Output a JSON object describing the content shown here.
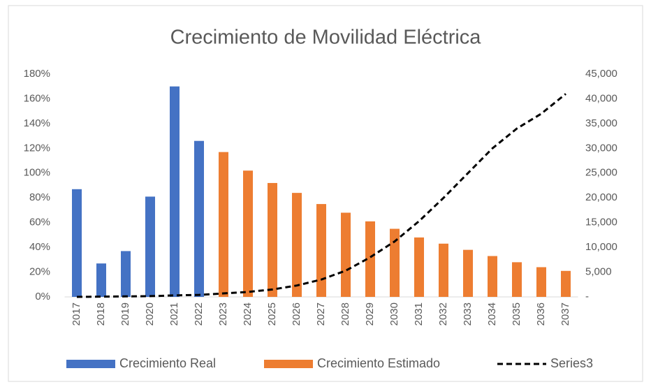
{
  "chart_data": {
    "type": "bar",
    "title": "Crecimiento de Movilidad Eléctrica",
    "categories": [
      "2017",
      "2018",
      "2019",
      "2020",
      "2021",
      "2022",
      "2023",
      "2024",
      "2025",
      "2026",
      "2027",
      "2028",
      "2029",
      "2030",
      "2031",
      "2032",
      "2033",
      "2034",
      "2035",
      "2036",
      "2037"
    ],
    "series": [
      {
        "name": "Crecimiento Real",
        "color": "#4472c4",
        "type": "bar",
        "values": [
          87,
          27,
          37,
          81,
          170,
          126,
          null,
          null,
          null,
          null,
          null,
          null,
          null,
          null,
          null,
          null,
          null,
          null,
          null,
          null,
          null
        ]
      },
      {
        "name": "Crecimiento  Estimado",
        "color": "#ed7d31",
        "type": "bar",
        "values": [
          null,
          null,
          null,
          null,
          null,
          null,
          117,
          102,
          92,
          84,
          75,
          68,
          61,
          55,
          48,
          43,
          38,
          33,
          28,
          24,
          21
        ]
      },
      {
        "name": "Series3",
        "color": "#000000",
        "type": "line",
        "axis": "y2",
        "values": [
          0,
          50,
          100,
          150,
          300,
          400,
          700,
          1000,
          1500,
          2300,
          3500,
          5300,
          8000,
          11200,
          15300,
          20000,
          25000,
          30000,
          34000,
          37000,
          41000
        ]
      }
    ],
    "ylim": [
      0,
      180
    ],
    "yticks": [
      {
        "value": 0,
        "label": "0%"
      },
      {
        "value": 20,
        "label": "20%"
      },
      {
        "value": 40,
        "label": "40%"
      },
      {
        "value": 60,
        "label": "60%"
      },
      {
        "value": 80,
        "label": "80%"
      },
      {
        "value": 100,
        "label": "100%"
      },
      {
        "value": 120,
        "label": "120%"
      },
      {
        "value": 140,
        "label": "140%"
      },
      {
        "value": 160,
        "label": "160%"
      },
      {
        "value": 180,
        "label": "180%"
      }
    ],
    "y2lim": [
      0,
      45000
    ],
    "y2ticks": [
      {
        "value": 0,
        "label": "-"
      },
      {
        "value": 5000,
        "label": "5,000"
      },
      {
        "value": 10000,
        "label": "10,000"
      },
      {
        "value": 15000,
        "label": "15,000"
      },
      {
        "value": 20000,
        "label": "20,000"
      },
      {
        "value": 25000,
        "label": "25,000"
      },
      {
        "value": 30000,
        "label": "30,000"
      },
      {
        "value": 35000,
        "label": "35,000"
      },
      {
        "value": 40000,
        "label": "40,000"
      },
      {
        "value": 45000,
        "label": "45,000"
      }
    ],
    "legend": "bottom"
  }
}
